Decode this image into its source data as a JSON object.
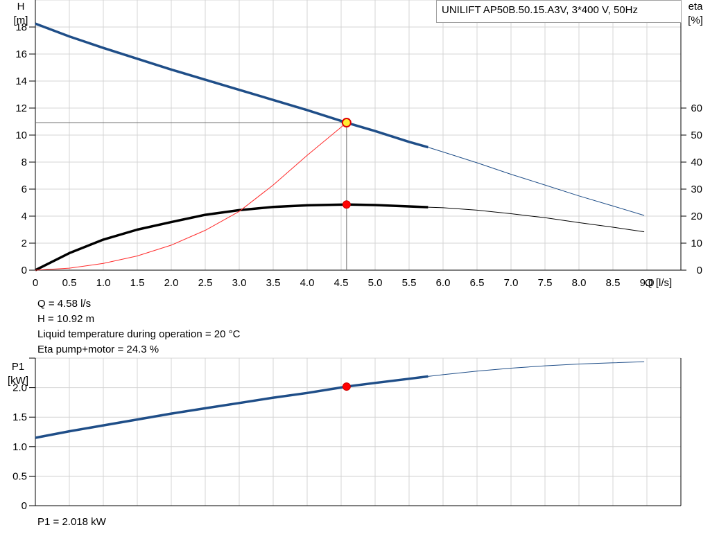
{
  "chart_data": [
    {
      "type": "line",
      "title": "UNILIFT AP50B.50.15.A3V, 3*400 V, 50Hz",
      "xlabel": "Q [l/s]",
      "ylabel_left": [
        "H",
        "[m]"
      ],
      "ylabel_right": [
        "eta",
        "[%]"
      ],
      "xlim": [
        0,
        9.5
      ],
      "ylim": [
        0,
        20
      ],
      "ylim_right": [
        0,
        100
      ],
      "x_ticks": [
        "0",
        "0.5",
        "1.0",
        "1.5",
        "2.0",
        "2.5",
        "3.0",
        "3.5",
        "4.0",
        "4.5",
        "5.0",
        "5.5",
        "6.0",
        "6.5",
        "7.0",
        "7.5",
        "8.0",
        "8.5",
        "9.0"
      ],
      "y_ticks": [
        "0",
        "2",
        "4",
        "6",
        "8",
        "10",
        "12",
        "14",
        "16",
        "18"
      ],
      "y_ticks_right": [
        "0",
        "10",
        "20",
        "30",
        "40",
        "50",
        "60"
      ],
      "grid": true,
      "series": [
        {
          "role": "H",
          "color": "#1f4e88",
          "axis": "left",
          "operating_range_end": 5.78,
          "x": [
            0,
            0.5,
            1.0,
            1.5,
            2.0,
            2.5,
            3.0,
            3.5,
            4.0,
            4.58,
            5.0,
            5.5,
            5.78,
            6.0,
            6.5,
            7.0,
            7.5,
            8.0,
            8.5,
            8.96
          ],
          "y": [
            18.25,
            17.3,
            16.45,
            15.65,
            14.85,
            14.1,
            13.35,
            12.6,
            11.85,
            10.92,
            10.3,
            9.5,
            9.1,
            8.75,
            7.95,
            7.1,
            6.3,
            5.5,
            4.75,
            4.05
          ]
        },
        {
          "role": "eta",
          "color": "#000000",
          "axis": "right",
          "operating_range_end": 5.78,
          "x": [
            0,
            0.5,
            1.0,
            1.5,
            2.0,
            2.5,
            3.0,
            3.5,
            4.0,
            4.58,
            5.0,
            5.5,
            5.78,
            6.0,
            6.5,
            7.0,
            7.5,
            8.0,
            8.5,
            8.96
          ],
          "y": [
            0,
            6.3,
            11.3,
            15.0,
            17.8,
            20.5,
            22.2,
            23.4,
            24.0,
            24.3,
            24.1,
            23.6,
            23.3,
            23.1,
            22.2,
            20.9,
            19.4,
            17.6,
            15.9,
            14.2
          ]
        },
        {
          "role": "NPSH",
          "color": "#ff2a2a",
          "axis": "left",
          "x": [
            0,
            0.5,
            1.0,
            1.5,
            2.0,
            2.5,
            3.0,
            3.5,
            4.0,
            4.58
          ],
          "y": [
            0,
            0.15,
            0.5,
            1.05,
            1.85,
            2.95,
            4.35,
            6.3,
            8.5,
            10.92
          ]
        }
      ],
      "operating_point": {
        "Q": 4.58,
        "H": 10.92,
        "eta": 24.3
      }
    },
    {
      "type": "line",
      "ylabel": [
        "P1",
        "[kW]"
      ],
      "xlim": [
        0,
        9.5
      ],
      "ylim": [
        0,
        2.5
      ],
      "y_ticks": [
        "0",
        "0.5",
        "1.0",
        "1.5",
        "2.0"
      ],
      "grid": true,
      "series": [
        {
          "role": "P1",
          "color": "#1f4e88",
          "operating_range_end": 5.78,
          "x": [
            0,
            0.5,
            1.0,
            1.5,
            2.0,
            2.5,
            3.0,
            3.5,
            4.0,
            4.58,
            5.0,
            5.5,
            5.78,
            6.0,
            6.5,
            7.0,
            7.5,
            8.0,
            8.5,
            8.96
          ],
          "y": [
            1.15,
            1.26,
            1.36,
            1.46,
            1.56,
            1.65,
            1.74,
            1.83,
            1.91,
            2.018,
            2.08,
            2.15,
            2.19,
            2.22,
            2.28,
            2.33,
            2.37,
            2.4,
            2.42,
            2.44
          ]
        }
      ],
      "operating_point": {
        "Q": 4.58,
        "P1": 2.018
      }
    }
  ],
  "info": {
    "q": "Q = 4.58 l/s",
    "h": "H = 10.92 m",
    "temp": "Liquid temperature during operation = 20 °C",
    "eta": "Eta pump+motor = 24.3 %",
    "p1": "P1 = 2.018 kW"
  }
}
